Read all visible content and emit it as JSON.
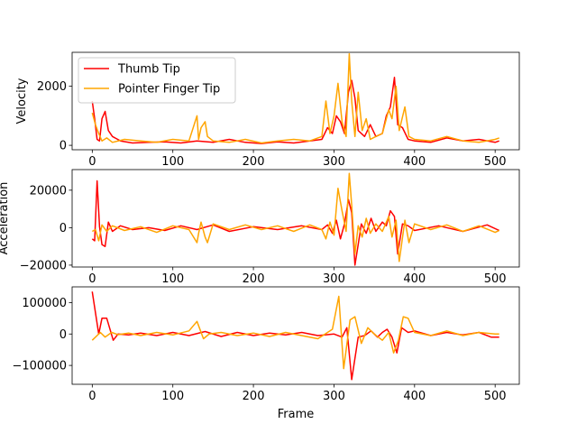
{
  "chart_data": [
    {
      "type": "line",
      "ylabel": "Velocity",
      "xlabel": "",
      "xlim": [
        -25,
        530
      ],
      "ylim": [
        -150,
        3150
      ],
      "xticks": [
        0,
        100,
        200,
        300,
        400,
        500
      ],
      "yticks": [
        0,
        2000
      ],
      "xtick_labels": [
        "0",
        "100",
        "200",
        "300",
        "400",
        "500"
      ],
      "ytick_labels": [
        "0",
        "2000"
      ],
      "legend": {
        "placement": "top-left",
        "entries": [
          "Thumb Tip",
          "Pointer Finger Tip"
        ]
      },
      "series": [
        {
          "name": "Thumb Tip",
          "color": "#ff0000",
          "x": [
            0,
            3,
            6,
            9,
            12,
            16,
            20,
            25,
            35,
            50,
            70,
            90,
            110,
            130,
            150,
            170,
            190,
            210,
            230,
            250,
            270,
            285,
            292,
            298,
            303,
            308,
            313,
            318,
            322,
            326,
            330,
            338,
            345,
            352,
            360,
            365,
            370,
            375,
            379,
            385,
            392,
            400,
            420,
            440,
            460,
            480,
            500,
            505
          ],
          "y": [
            1500,
            900,
            200,
            150,
            900,
            1150,
            500,
            300,
            150,
            80,
            100,
            120,
            80,
            150,
            100,
            200,
            100,
            60,
            120,
            80,
            150,
            200,
            600,
            400,
            1000,
            800,
            400,
            1800,
            2200,
            1600,
            500,
            300,
            700,
            300,
            400,
            1000,
            1300,
            2300,
            700,
            600,
            200,
            150,
            100,
            250,
            150,
            200,
            100,
            150
          ]
        },
        {
          "name": "Pointer Finger Tip",
          "color": "#ffa500",
          "x": [
            0,
            4,
            8,
            12,
            18,
            25,
            40,
            60,
            80,
            100,
            120,
            130,
            132,
            135,
            140,
            143,
            150,
            170,
            190,
            210,
            230,
            250,
            270,
            285,
            290,
            295,
            300,
            305,
            310,
            315,
            319,
            322,
            326,
            330,
            335,
            340,
            345,
            352,
            360,
            368,
            372,
            377,
            381,
            388,
            393,
            400,
            420,
            440,
            460,
            480,
            500,
            505
          ],
          "y": [
            1100,
            700,
            400,
            150,
            250,
            100,
            200,
            150,
            100,
            200,
            150,
            1000,
            200,
            600,
            800,
            300,
            150,
            100,
            200,
            80,
            150,
            200,
            150,
            300,
            1500,
            400,
            1000,
            2100,
            800,
            300,
            3100,
            1500,
            300,
            1800,
            500,
            900,
            200,
            300,
            400,
            1200,
            900,
            2000,
            500,
            1300,
            300,
            200,
            150,
            300,
            150,
            100,
            200,
            250
          ]
        }
      ]
    },
    {
      "type": "line",
      "ylabel": "Acceleration",
      "xlabel": "",
      "xlim": [
        -25,
        530
      ],
      "ylim": [
        -21000,
        31000
      ],
      "xticks": [
        0,
        100,
        200,
        300,
        400,
        500
      ],
      "yticks": [
        -20000,
        0,
        20000
      ],
      "xtick_labels": [
        "0",
        "100",
        "200",
        "300",
        "400",
        "500"
      ],
      "ytick_labels": [
        "−20000",
        "0",
        "20000"
      ],
      "series": [
        {
          "name": "Thumb Tip",
          "color": "#ff0000",
          "x": [
            0,
            3,
            6,
            9,
            12,
            16,
            20,
            25,
            35,
            50,
            70,
            90,
            110,
            130,
            150,
            170,
            200,
            230,
            260,
            285,
            292,
            298,
            303,
            308,
            313,
            318,
            322,
            326,
            330,
            334,
            340,
            346,
            352,
            360,
            365,
            370,
            375,
            379,
            385,
            392,
            400,
            430,
            460,
            490,
            505
          ],
          "y": [
            -6000,
            -7000,
            25000,
            500,
            -9000,
            -10000,
            3000,
            -2000,
            1000,
            -1000,
            0,
            -1500,
            1000,
            -1000,
            1500,
            -2000,
            500,
            -1000,
            1000,
            -1000,
            1500,
            -3000,
            4000,
            -6000,
            2000,
            15000,
            8000,
            -20000,
            -9000,
            2000,
            -3000,
            5000,
            -2000,
            3000,
            1000,
            9000,
            6000,
            -14000,
            2000,
            1000,
            -1500,
            1000,
            -2000,
            1500,
            -1500
          ]
        },
        {
          "name": "Pointer Finger Tip",
          "color": "#ffa500",
          "x": [
            0,
            4,
            8,
            12,
            18,
            25,
            40,
            60,
            80,
            100,
            120,
            130,
            132,
            135,
            140,
            143,
            150,
            170,
            190,
            210,
            230,
            250,
            270,
            285,
            290,
            295,
            300,
            305,
            310,
            315,
            319,
            322,
            326,
            330,
            335,
            340,
            345,
            352,
            360,
            368,
            372,
            377,
            381,
            388,
            393,
            400,
            420,
            440,
            460,
            480,
            500,
            505
          ],
          "y": [
            -2000,
            -1000,
            -7000,
            1500,
            -2000,
            1000,
            -1500,
            500,
            -2500,
            1000,
            -1000,
            -8000,
            -3000,
            3000,
            -5000,
            -8000,
            2000,
            -1000,
            1500,
            -1000,
            1000,
            -2000,
            1500,
            -1000,
            -6000,
            3000,
            -4000,
            21000,
            9000,
            -2000,
            29000,
            12000,
            -14000,
            1000,
            -5000,
            5000,
            -3000,
            2000,
            -2000,
            6000,
            -5000,
            4000,
            -18000,
            4000,
            -8000,
            2000,
            -1000,
            1500,
            -2000,
            1000,
            -2500,
            -1500
          ]
        }
      ]
    },
    {
      "type": "line",
      "ylabel": "",
      "xlabel": "Frame",
      "xlim": [
        -25,
        530
      ],
      "ylim": [
        -160000,
        150000
      ],
      "xticks": [
        0,
        100,
        200,
        300,
        400,
        500
      ],
      "yticks": [
        -100000,
        0,
        100000
      ],
      "xtick_labels": [
        "0",
        "100",
        "200",
        "300",
        "400",
        "500"
      ],
      "ytick_labels": [
        "−100000",
        "0",
        "100000"
      ],
      "series": [
        {
          "name": "Thumb Tip",
          "color": "#ff0000",
          "x": [
            0,
            8,
            12,
            18,
            26,
            32,
            45,
            60,
            80,
            100,
            120,
            140,
            160,
            180,
            200,
            220,
            240,
            260,
            280,
            300,
            310,
            316,
            322,
            330,
            338,
            346,
            354,
            360,
            366,
            372,
            378,
            384,
            392,
            400,
            420,
            440,
            460,
            480,
            495,
            505
          ],
          "y": [
            135000,
            0,
            50000,
            50000,
            -20000,
            0,
            -3000,
            3000,
            -5000,
            5000,
            -5000,
            8000,
            -8000,
            5000,
            -5000,
            3000,
            -3000,
            5000,
            -5000,
            0,
            -10000,
            20000,
            -145000,
            -10000,
            -5000,
            10000,
            -10000,
            5000,
            15000,
            -10000,
            -60000,
            20000,
            5000,
            10000,
            -5000,
            5000,
            -3000,
            5000,
            -10000,
            -10000
          ]
        },
        {
          "name": "Pointer Finger Tip",
          "color": "#ffa500",
          "x": [
            0,
            10,
            16,
            24,
            32,
            45,
            60,
            80,
            100,
            120,
            130,
            138,
            145,
            160,
            180,
            200,
            220,
            240,
            260,
            280,
            298,
            306,
            312,
            320,
            326,
            334,
            342,
            350,
            360,
            368,
            374,
            380,
            386,
            392,
            400,
            420,
            440,
            460,
            480,
            500,
            505
          ],
          "y": [
            -20000,
            5000,
            -10000,
            5000,
            -2000,
            3000,
            -5000,
            5000,
            -3000,
            10000,
            40000,
            -15000,
            0,
            5000,
            -5000,
            3000,
            -8000,
            5000,
            -5000,
            -15000,
            15000,
            120000,
            -110000,
            45000,
            55000,
            -30000,
            20000,
            0,
            -20000,
            5000,
            -60000,
            -20000,
            55000,
            50000,
            5000,
            -5000,
            10000,
            -5000,
            5000,
            0,
            0
          ]
        }
      ]
    }
  ]
}
